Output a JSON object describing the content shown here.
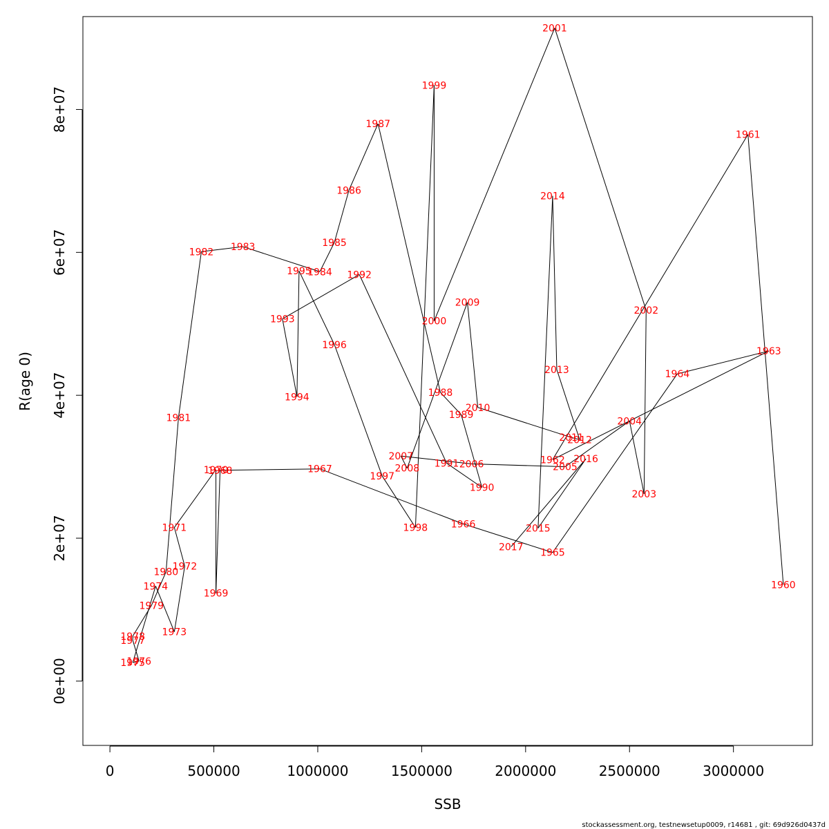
{
  "chart_data": {
    "type": "line",
    "title": "",
    "xlabel": "SSB",
    "ylabel": "R(age 0)",
    "xlim": [
      -130000,
      3380000
    ],
    "ylim": [
      -9000000,
      93000000
    ],
    "x_ticks": [
      0,
      500000,
      1000000,
      1500000,
      2000000,
      2500000,
      3000000
    ],
    "x_tick_labels": [
      "0",
      "500000",
      "1000000",
      "1500000",
      "2000000",
      "2500000",
      "3000000"
    ],
    "y_ticks": [
      0,
      20000000,
      40000000,
      60000000,
      80000000
    ],
    "y_tick_labels": [
      "0e+00",
      "2e+07",
      "4e+07",
      "6e+07",
      "8e+07"
    ],
    "grid": false,
    "legend": "none",
    "line_color": "#000000",
    "label_color": "#ff0000",
    "points": [
      {
        "year": "1960",
        "x": 3240000,
        "y": 13500000
      },
      {
        "year": "1961",
        "x": 3070000,
        "y": 76500000
      },
      {
        "year": "1962",
        "x": 2130000,
        "y": 31000000
      },
      {
        "year": "1963",
        "x": 3170000,
        "y": 46200000
      },
      {
        "year": "1964",
        "x": 2730000,
        "y": 43000000
      },
      {
        "year": "1965",
        "x": 2130000,
        "y": 18000000
      },
      {
        "year": "1966",
        "x": 1700000,
        "y": 22000000
      },
      {
        "year": "1967",
        "x": 1010000,
        "y": 29700000
      },
      {
        "year": "1968",
        "x": 530000,
        "y": 29500000
      },
      {
        "year": "1969",
        "x": 510000,
        "y": 12300000
      },
      {
        "year": "1970",
        "x": 510000,
        "y": 29600000
      },
      {
        "year": "1971",
        "x": 310000,
        "y": 21500000
      },
      {
        "year": "1972",
        "x": 360000,
        "y": 16100000
      },
      {
        "year": "1973",
        "x": 310000,
        "y": 6900000
      },
      {
        "year": "1974",
        "x": 220000,
        "y": 13300000
      },
      {
        "year": "1975",
        "x": 110000,
        "y": 2600000
      },
      {
        "year": "1976",
        "x": 140000,
        "y": 2800000
      },
      {
        "year": "1977",
        "x": 110000,
        "y": 5700000
      },
      {
        "year": "1978",
        "x": 110000,
        "y": 6300000
      },
      {
        "year": "1979",
        "x": 200000,
        "y": 10600000
      },
      {
        "year": "1980",
        "x": 270000,
        "y": 15300000
      },
      {
        "year": "1981",
        "x": 330000,
        "y": 36900000
      },
      {
        "year": "1982",
        "x": 440000,
        "y": 60100000
      },
      {
        "year": "1983",
        "x": 640000,
        "y": 60800000
      },
      {
        "year": "1984",
        "x": 1010000,
        "y": 57300000
      },
      {
        "year": "1985",
        "x": 1080000,
        "y": 61400000
      },
      {
        "year": "1986",
        "x": 1150000,
        "y": 68700000
      },
      {
        "year": "1987",
        "x": 1290000,
        "y": 78000000
      },
      {
        "year": "1988",
        "x": 1590000,
        "y": 40400000
      },
      {
        "year": "1989",
        "x": 1690000,
        "y": 37300000
      },
      {
        "year": "1990",
        "x": 1790000,
        "y": 27100000
      },
      {
        "year": "1991",
        "x": 1620000,
        "y": 30500000
      },
      {
        "year": "1992",
        "x": 1200000,
        "y": 56900000
      },
      {
        "year": "1993",
        "x": 830000,
        "y": 50700000
      },
      {
        "year": "1994",
        "x": 900000,
        "y": 39800000
      },
      {
        "year": "1995",
        "x": 910000,
        "y": 57400000
      },
      {
        "year": "1996",
        "x": 1080000,
        "y": 47100000
      },
      {
        "year": "1997",
        "x": 1310000,
        "y": 28700000
      },
      {
        "year": "1998",
        "x": 1470000,
        "y": 21500000
      },
      {
        "year": "1999",
        "x": 1560000,
        "y": 83400000
      },
      {
        "year": "2000",
        "x": 1560000,
        "y": 50400000
      },
      {
        "year": "2001",
        "x": 2140000,
        "y": 91400000
      },
      {
        "year": "2002",
        "x": 2580000,
        "y": 51900000
      },
      {
        "year": "2003",
        "x": 2570000,
        "y": 26200000
      },
      {
        "year": "2004",
        "x": 2500000,
        "y": 36400000
      },
      {
        "year": "2005",
        "x": 2190000,
        "y": 30000000
      },
      {
        "year": "2006",
        "x": 1740000,
        "y": 30400000
      },
      {
        "year": "2007",
        "x": 1400000,
        "y": 31500000
      },
      {
        "year": "2008",
        "x": 1430000,
        "y": 29800000
      },
      {
        "year": "2009",
        "x": 1720000,
        "y": 53000000
      },
      {
        "year": "2010",
        "x": 1770000,
        "y": 38300000
      },
      {
        "year": "2011",
        "x": 2220000,
        "y": 34100000
      },
      {
        "year": "2012",
        "x": 2260000,
        "y": 33800000
      },
      {
        "year": "2013",
        "x": 2150000,
        "y": 43600000
      },
      {
        "year": "2014",
        "x": 2130000,
        "y": 67900000
      },
      {
        "year": "2015",
        "x": 2060000,
        "y": 21400000
      },
      {
        "year": "2016",
        "x": 2290000,
        "y": 31100000
      },
      {
        "year": "2017",
        "x": 1930000,
        "y": 18800000
      }
    ]
  },
  "footer": "stockassessment.org, testnewsetup0009, r14681 , git: 69d926d0437d"
}
